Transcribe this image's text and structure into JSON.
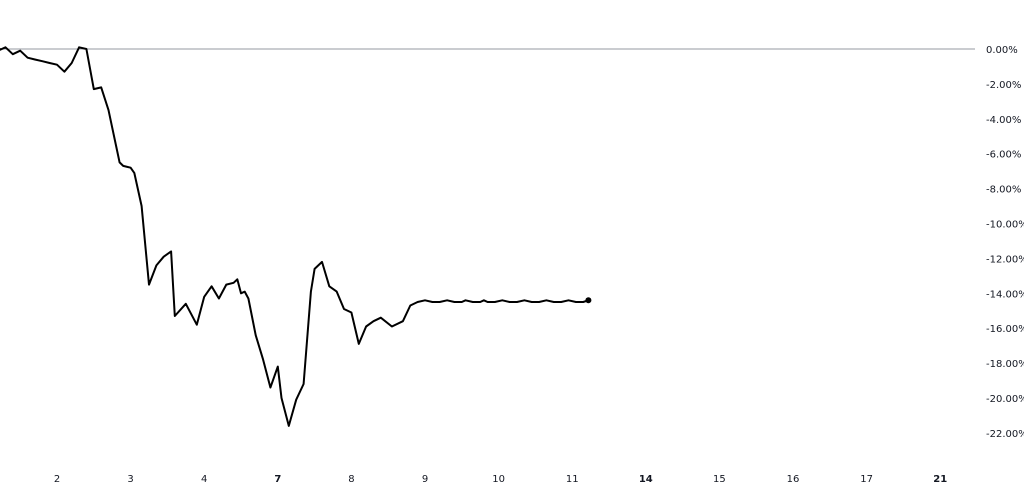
{
  "chart_data": {
    "type": "line",
    "title": "",
    "xlabel": "",
    "ylabel": "",
    "ylim": [
      -23,
      1.3
    ],
    "grid": false,
    "y_ticks": [
      "0.00%",
      "-2.00%",
      "-4.00%",
      "-6.00%",
      "-8.00%",
      "-10.00%",
      "-12.00%",
      "-14.00%",
      "-16.00%",
      "-18.00%",
      "-20.00%",
      "-22.00%"
    ],
    "y_tick_values": [
      0,
      -2,
      -4,
      -6,
      -8,
      -10,
      -12,
      -14,
      -16,
      -18,
      -20,
      -22
    ],
    "x_ticks": [
      {
        "label": "2",
        "day": 2,
        "bold": false
      },
      {
        "label": "3",
        "day": 3,
        "bold": false
      },
      {
        "label": "4",
        "day": 4,
        "bold": false
      },
      {
        "label": "7",
        "day": 5,
        "bold": true
      },
      {
        "label": "8",
        "day": 6,
        "bold": false
      },
      {
        "label": "9",
        "day": 7,
        "bold": false
      },
      {
        "label": "10",
        "day": 8,
        "bold": false
      },
      {
        "label": "11",
        "day": 9,
        "bold": false
      },
      {
        "label": "14",
        "day": 10,
        "bold": true
      },
      {
        "label": "15",
        "day": 11,
        "bold": false
      },
      {
        "label": "16",
        "day": 12,
        "bold": false
      },
      {
        "label": "17",
        "day": 13,
        "bold": false
      },
      {
        "label": "21",
        "day": 14,
        "bold": true
      }
    ],
    "reference_line": {
      "value": 0,
      "color": "#9598a1"
    },
    "series": [
      {
        "color": "#000000",
        "x": [
          1.2,
          1.3,
          1.4,
          1.5,
          1.6,
          1.7,
          1.8,
          1.9,
          2.0,
          2.1,
          2.2,
          2.3,
          2.4,
          2.5,
          2.6,
          2.7,
          2.8,
          2.85,
          2.9,
          3.0,
          3.05,
          3.15,
          3.25,
          3.35,
          3.45,
          3.55,
          3.6,
          3.75,
          3.9,
          4.0,
          4.1,
          4.2,
          4.3,
          4.4,
          4.45,
          4.5,
          4.55,
          4.6,
          4.7,
          4.8,
          4.9,
          4.95,
          5.0,
          5.05,
          5.15,
          5.25,
          5.35,
          5.45,
          5.5,
          5.6,
          5.7,
          5.8,
          5.9,
          6.0,
          6.1,
          6.2,
          6.3,
          6.4,
          6.55,
          6.7,
          6.8,
          6.9,
          7.0,
          7.1,
          7.2,
          7.3,
          7.4,
          7.5,
          7.55,
          7.65,
          7.75,
          7.8,
          7.85,
          7.95,
          8.05,
          8.15,
          8.25,
          8.35,
          8.45,
          8.55,
          8.65,
          8.75,
          8.85,
          8.95,
          9.05,
          9.15,
          9.22
        ],
        "y": [
          -0.1,
          0.1,
          -0.3,
          -0.1,
          -0.5,
          -0.6,
          -0.7,
          -0.8,
          -0.9,
          -1.3,
          -0.8,
          0.1,
          0.0,
          -2.3,
          -2.2,
          -3.5,
          -5.5,
          -6.5,
          -6.7,
          -6.8,
          -7.1,
          -9.0,
          -13.5,
          -12.4,
          -11.9,
          -11.6,
          -15.3,
          -14.6,
          -15.8,
          -14.2,
          -13.6,
          -14.3,
          -13.5,
          -13.4,
          -13.2,
          -14.0,
          -13.9,
          -14.3,
          -16.4,
          -17.8,
          -19.4,
          -18.8,
          -18.2,
          -20.0,
          -21.6,
          -20.1,
          -19.2,
          -13.9,
          -12.6,
          -12.2,
          -13.6,
          -13.9,
          -14.9,
          -15.1,
          -16.9,
          -15.9,
          -15.6,
          -15.4,
          -15.9,
          -15.6,
          -14.7,
          -14.5,
          -14.4,
          -14.5,
          -14.5,
          -14.4,
          -14.5,
          -14.5,
          -14.4,
          -14.5,
          -14.5,
          -14.4,
          -14.5,
          -14.5,
          -14.4,
          -14.5,
          -14.5,
          -14.4,
          -14.5,
          -14.5,
          -14.4,
          -14.5,
          -14.5,
          -14.4,
          -14.5,
          -14.5,
          -14.4
        ]
      }
    ]
  }
}
